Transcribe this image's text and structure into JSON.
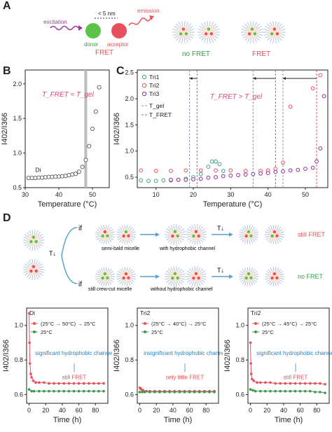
{
  "panel_a": {
    "letter": "A",
    "excitation": "excitation",
    "distance": "< 5 nm",
    "emission": "emission",
    "donor": "donor",
    "acceptor": "acceptor",
    "fret": "FRET",
    "no_fret": "no FRET",
    "fret_right": "FRET",
    "colors": {
      "donor": "#5cc34a",
      "acceptor": "#e8505b",
      "excitation": "#9b3aa5",
      "emission": "#e8505b"
    }
  },
  "panel_b": {
    "letter": "B",
    "annotation": "T_FRET ≈ T_gel",
    "ylabel": "I402/I366",
    "xlabel": "Temperature (°C)",
    "series_label": "Di"
  },
  "panel_c": {
    "letter": "C",
    "annotation": "T_FRET > T_gel",
    "legend": [
      "Tri1",
      "Tri2",
      "Tri3",
      "T_gel",
      "T_FRET"
    ],
    "xlabel": "Temperature (°C)",
    "ylabel": "I402/I366"
  },
  "panel_d": {
    "letter": "D",
    "if1": "if",
    "if2": "if",
    "semi_bald": "semi-bald micelle",
    "with_channel": "with hydrophobic channel",
    "still_fret": "still FRET",
    "still_crewcut": "still crew-cut micelle",
    "without_channel": "without hydrophobic channel",
    "no_fret": "no FRET",
    "tau": "T↓"
  },
  "chart_data": [
    {
      "type": "scatter",
      "panel": "B",
      "series": [
        {
          "name": "Di",
          "x": [
            31,
            32,
            33,
            34,
            35,
            36,
            37,
            38,
            39,
            40,
            41,
            42,
            43,
            44,
            45,
            46,
            47,
            48,
            49,
            50,
            51,
            52
          ],
          "y": [
            0.64,
            0.64,
            0.64,
            0.645,
            0.645,
            0.65,
            0.655,
            0.655,
            0.66,
            0.66,
            0.665,
            0.67,
            0.68,
            0.69,
            0.7,
            0.73,
            0.8,
            0.9,
            1.1,
            1.35,
            1.6,
            1.95
          ]
        }
      ],
      "xlabel": "Temperature (°C)",
      "ylabel": "I402/I366",
      "xlim": [
        30,
        55
      ],
      "ylim": [
        0.5,
        2.2
      ],
      "xticks": [
        30,
        40,
        50
      ],
      "yticks": [
        0.5,
        1.0,
        1.5,
        2.0
      ],
      "vband": 48
    },
    {
      "type": "scatter",
      "panel": "C",
      "series": [
        {
          "name": "Tri1",
          "color": "#3aa57a",
          "x": [
            6,
            8,
            10,
            12,
            14,
            16,
            18,
            20,
            22,
            24,
            25,
            26,
            27,
            28
          ],
          "y": [
            0.44,
            0.43,
            0.43,
            0.44,
            0.44,
            0.45,
            0.47,
            0.5,
            0.56,
            0.7,
            0.8,
            0.8,
            0.75,
            0.62
          ]
        },
        {
          "name": "Tri2",
          "color": "#e8505b",
          "x": [
            6,
            10,
            14,
            18,
            22,
            26,
            30,
            34,
            38,
            40,
            42,
            44,
            46,
            52,
            54
          ],
          "y": [
            0.63,
            0.62,
            0.62,
            0.63,
            0.63,
            0.63,
            0.63,
            0.62,
            0.62,
            0.63,
            0.66,
            0.78,
            1.85,
            2.2,
            2.45
          ]
        },
        {
          "name": "Tri3",
          "color": "#8e2a9a",
          "x": [
            14,
            16,
            18,
            20,
            22,
            24,
            26,
            28,
            30,
            32,
            34,
            36,
            38,
            40,
            42,
            44,
            46,
            48,
            50,
            52,
            53,
            54,
            55
          ],
          "y": [
            0.45,
            0.45,
            0.45,
            0.46,
            0.47,
            0.49,
            0.5,
            0.52,
            0.53,
            0.54,
            0.55,
            0.56,
            0.57,
            0.58,
            0.6,
            0.61,
            0.63,
            0.64,
            0.66,
            0.68,
            0.8,
            1.05,
            2.05
          ]
        }
      ],
      "xlabel": "Temperature (°C)",
      "ylabel": "I402/I366",
      "xlim": [
        5,
        56
      ],
      "ylim": [
        0.3,
        2.55
      ],
      "xticks": [
        10,
        20,
        30,
        40,
        50
      ],
      "yticks": [
        0.5,
        1.0,
        1.5,
        2.0,
        2.5
      ],
      "tgel_lines": [
        19,
        36,
        44
      ],
      "tfret_lines": [
        21,
        42,
        53
      ]
    },
    {
      "type": "line",
      "panel": "D-1",
      "title": "Di",
      "series": [
        {
          "name": "(25°C → 50°C) → 25°C",
          "color": "#e8505b",
          "x": [
            0,
            0.5,
            1,
            2,
            3,
            5,
            8,
            12,
            18,
            24,
            30,
            36,
            42,
            48,
            54,
            60,
            66,
            72,
            78,
            84,
            90
          ],
          "y": [
            1.07,
            0.9,
            0.78,
            0.72,
            0.7,
            0.68,
            0.67,
            0.67,
            0.67,
            0.665,
            0.665,
            0.665,
            0.665,
            0.665,
            0.665,
            0.665,
            0.665,
            0.665,
            0.665,
            0.665,
            0.665
          ]
        },
        {
          "name": "25°C",
          "color": "#3a9a4a",
          "x": [
            0,
            3,
            6,
            12,
            18,
            24,
            30,
            36,
            42,
            48,
            54,
            60,
            66,
            72,
            78,
            84,
            90
          ],
          "y": [
            0.63,
            0.62,
            0.62,
            0.62,
            0.62,
            0.62,
            0.62,
            0.62,
            0.62,
            0.62,
            0.62,
            0.62,
            0.62,
            0.62,
            0.62,
            0.62,
            0.62
          ]
        }
      ],
      "annotation_top": "significant hydrophobic channel",
      "annotation_bottom": "still FRET",
      "xlabel": "Time (h)",
      "ylabel": "I402/I366",
      "xlim": [
        -3,
        95
      ],
      "ylim": [
        0.55,
        1.1
      ],
      "xticks": [
        0,
        20,
        40,
        60,
        80
      ],
      "yticks": [
        0.6,
        0.8,
        1.0
      ]
    },
    {
      "type": "line",
      "panel": "D-2",
      "title": "Tri2",
      "series": [
        {
          "name": "(25°C → 40°C) → 25°C",
          "color": "#e8505b",
          "x": [
            0,
            1,
            2,
            4,
            8,
            12,
            18,
            24,
            30,
            36,
            42,
            48,
            54,
            60,
            66,
            72,
            78,
            84,
            90
          ],
          "y": [
            0.64,
            0.635,
            0.63,
            0.625,
            0.62,
            0.62,
            0.62,
            0.62,
            0.62,
            0.62,
            0.62,
            0.62,
            0.62,
            0.62,
            0.62,
            0.62,
            0.62,
            0.62,
            0.62
          ]
        },
        {
          "name": "25°C",
          "color": "#3a9a4a",
          "x": [
            0,
            3,
            6,
            12,
            18,
            24,
            30,
            36,
            42,
            48,
            54,
            60,
            66,
            72,
            78,
            84,
            90
          ],
          "y": [
            0.615,
            0.615,
            0.615,
            0.615,
            0.615,
            0.615,
            0.615,
            0.615,
            0.615,
            0.615,
            0.615,
            0.615,
            0.615,
            0.615,
            0.615,
            0.615,
            0.615
          ]
        }
      ],
      "annotation_top": "insignificant hydrophobic channel",
      "annotation_bottom": "only little FRET",
      "xlabel": "Time (h)",
      "ylabel": "I402/I366",
      "xlim": [
        -3,
        95
      ],
      "ylim": [
        0.55,
        1.1
      ],
      "xticks": [
        0,
        20,
        40,
        60,
        80
      ],
      "yticks": [
        0.6,
        0.8,
        1.0
      ]
    },
    {
      "type": "line",
      "panel": "D-3",
      "title": "Tri2",
      "series": [
        {
          "name": "(25°C → 45°C) → 25°C",
          "color": "#e8505b",
          "x": [
            0,
            0.5,
            1,
            2,
            4,
            8,
            12,
            18,
            24,
            30,
            36,
            42,
            48,
            54,
            60,
            66,
            72,
            78,
            84,
            90
          ],
          "y": [
            0.9,
            0.78,
            0.72,
            0.69,
            0.68,
            0.67,
            0.67,
            0.67,
            0.67,
            0.665,
            0.665,
            0.665,
            0.665,
            0.665,
            0.665,
            0.665,
            0.665,
            0.665,
            0.665,
            0.66
          ]
        },
        {
          "name": "25°C",
          "color": "#3a9a4a",
          "x": [
            0,
            3,
            6,
            12,
            18,
            24,
            30,
            36,
            42,
            48,
            54,
            60,
            66,
            72,
            78,
            84,
            90
          ],
          "y": [
            0.63,
            0.625,
            0.62,
            0.62,
            0.62,
            0.62,
            0.62,
            0.62,
            0.62,
            0.62,
            0.62,
            0.62,
            0.62,
            0.62,
            0.615,
            0.615,
            0.61
          ]
        }
      ],
      "annotation_top": "significant hydrophobic channel",
      "annotation_bottom": "still FRET",
      "xlabel": "Time (h)",
      "ylabel": "I402/I366",
      "xlim": [
        -3,
        95
      ],
      "ylim": [
        0.55,
        1.1
      ],
      "xticks": [
        0,
        20,
        40,
        60,
        80
      ],
      "yticks": [
        0.6,
        0.8,
        1.0
      ]
    }
  ]
}
